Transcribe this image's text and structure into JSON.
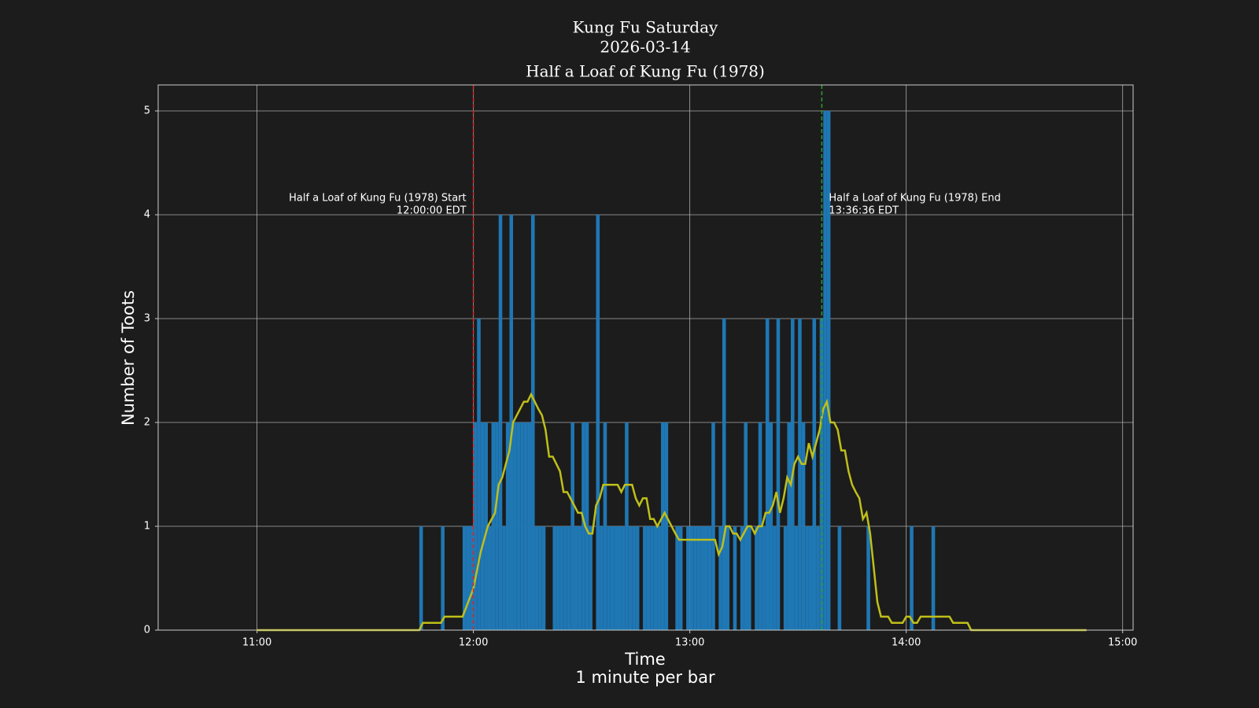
{
  "chart_data": {
    "type": "bar",
    "title": [
      "Kung Fu Saturday",
      "2026-03-14",
      "Half a Loaf of Kung Fu (1978)"
    ],
    "xlabel": [
      "Time",
      "1 minute per bar"
    ],
    "ylabel": "Number of Toots",
    "xlim": [
      632.6,
      902.9
    ],
    "xticks": [
      {
        "value": 660,
        "label": "11:00"
      },
      {
        "value": 720,
        "label": "12:00"
      },
      {
        "value": 780,
        "label": "13:00"
      },
      {
        "value": 840,
        "label": "14:00"
      },
      {
        "value": 900,
        "label": "15:00"
      }
    ],
    "ylim": [
      0,
      5.25
    ],
    "yticks": [
      0,
      1,
      2,
      3,
      4,
      5
    ],
    "grid": true,
    "bars": {
      "color": "#1f77b4",
      "x": [
        705,
        711,
        717,
        718,
        719,
        720,
        721,
        722,
        723,
        724,
        725,
        726,
        727,
        728,
        729,
        730,
        731,
        732,
        733,
        734,
        735,
        736,
        737,
        738,
        739,
        742,
        743,
        744,
        745,
        746,
        747,
        748,
        749,
        750,
        751,
        752,
        754,
        755,
        756,
        757,
        758,
        759,
        760,
        761,
        762,
        763,
        764,
        765,
        767,
        768,
        769,
        770,
        771,
        772,
        773,
        776,
        777,
        779,
        780,
        781,
        782,
        783,
        784,
        785,
        786,
        788,
        789,
        790,
        792,
        794,
        795,
        796,
        798,
        799,
        800,
        801,
        802,
        803,
        804,
        806,
        807,
        808,
        809,
        810,
        811,
        812,
        813,
        814,
        815,
        816,
        817,
        818,
        821,
        829,
        841,
        847
      ],
      "values": [
        1,
        1,
        1,
        1,
        1,
        2,
        3,
        2,
        2,
        1,
        2,
        2,
        4,
        1,
        2,
        4,
        2,
        2,
        2,
        2,
        2,
        4,
        1,
        1,
        1,
        1,
        1,
        1,
        1,
        1,
        2,
        1,
        1,
        2,
        2,
        1,
        4,
        1,
        2,
        1,
        1,
        1,
        1,
        1,
        2,
        1,
        1,
        1,
        1,
        1,
        1,
        1,
        1,
        2,
        2,
        1,
        1,
        1,
        1,
        1,
        1,
        1,
        1,
        1,
        2,
        1,
        3,
        1,
        1,
        1,
        2,
        1,
        1,
        2,
        1,
        3,
        2,
        1,
        3,
        1,
        2,
        3,
        1,
        3,
        2,
        1,
        1,
        3,
        1,
        3,
        5,
        5,
        1,
        1,
        1,
        1
      ]
    },
    "rolling": {
      "type": "line",
      "color": "#bfbf1a",
      "x": [
        660,
        705,
        706,
        711,
        712,
        717,
        720,
        722,
        724,
        726,
        727,
        728,
        730,
        731,
        734,
        735,
        736,
        738,
        739,
        740,
        741,
        742,
        744,
        745,
        746,
        749,
        750,
        751,
        752,
        753,
        754,
        755,
        756,
        760,
        761,
        762,
        764,
        765,
        766,
        767,
        768,
        769,
        770,
        771,
        773,
        776,
        777,
        787,
        788,
        789,
        790,
        791,
        792,
        793,
        794,
        796,
        797,
        798,
        799,
        800,
        801,
        802,
        803,
        804,
        805,
        806,
        807,
        808,
        809,
        810,
        811,
        812,
        813,
        814,
        815,
        816,
        817,
        818,
        819,
        820,
        821,
        822,
        823,
        824,
        825,
        826,
        827,
        828,
        829,
        830,
        831,
        832,
        833,
        835,
        836,
        839,
        840,
        841,
        842,
        843,
        844,
        852,
        853,
        857,
        858,
        890
      ],
      "values": [
        0,
        0,
        0.07,
        0.07,
        0.13,
        0.13,
        0.4,
        0.75,
        1.0,
        1.13,
        1.4,
        1.47,
        1.73,
        2.0,
        2.2,
        2.2,
        2.27,
        2.13,
        2.07,
        1.93,
        1.67,
        1.67,
        1.53,
        1.33,
        1.33,
        1.13,
        1.13,
        1.0,
        0.93,
        0.93,
        1.2,
        1.27,
        1.4,
        1.4,
        1.33,
        1.4,
        1.4,
        1.27,
        1.2,
        1.27,
        1.27,
        1.07,
        1.07,
        1.0,
        1.13,
        0.93,
        0.87,
        0.87,
        0.73,
        0.8,
        1.0,
        1.0,
        0.93,
        0.93,
        0.87,
        1.0,
        1.0,
        0.93,
        1.0,
        1.0,
        1.13,
        1.13,
        1.2,
        1.33,
        1.13,
        1.27,
        1.47,
        1.4,
        1.6,
        1.67,
        1.6,
        1.6,
        1.8,
        1.67,
        1.8,
        1.93,
        2.13,
        2.2,
        2.0,
        2.0,
        1.93,
        1.73,
        1.73,
        1.53,
        1.4,
        1.33,
        1.27,
        1.07,
        1.13,
        0.93,
        0.6,
        0.27,
        0.13,
        0.13,
        0.07,
        0.07,
        0.13,
        0.13,
        0.07,
        0.07,
        0.13,
        0.13,
        0.07,
        0.07,
        0,
        0
      ]
    },
    "annotations": [
      {
        "x": 720,
        "color": "#d62728",
        "align": "right",
        "text": [
          "Half a Loaf of Kung Fu (1978) Start",
          "12:00:00 EDT"
        ]
      },
      {
        "x": 816.6,
        "color": "#2ca02c",
        "align": "left",
        "text": [
          "Half a Loaf of Kung Fu (1978) End",
          "13:36:36 EDT"
        ]
      }
    ]
  }
}
